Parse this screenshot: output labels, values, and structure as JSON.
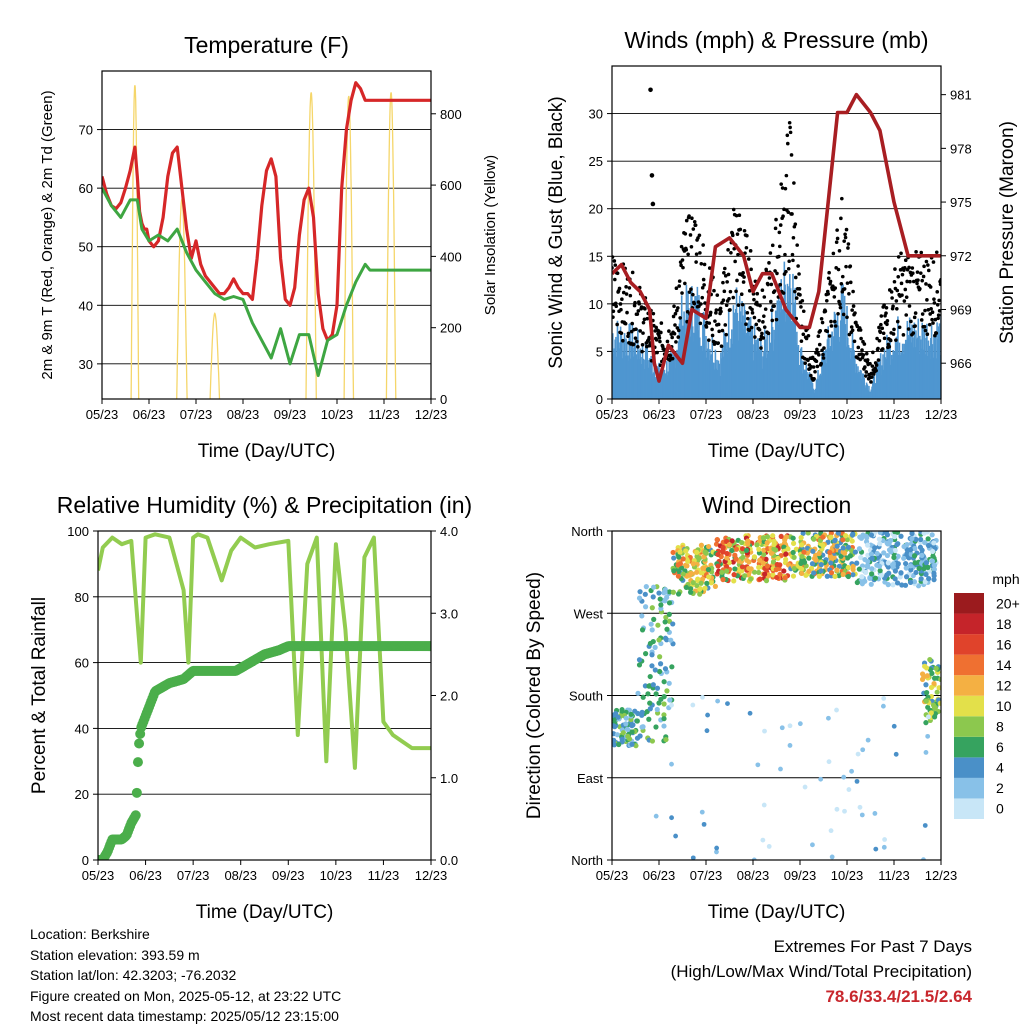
{
  "chart_data": [
    {
      "type": "line",
      "id": "temperature",
      "title": "Temperature (F)",
      "xlabel": "Time (Day/UTC)",
      "ylabel": "2m & 9m T (Red, Orange) & 2m Td (Green)",
      "ylabel_right": "Solar Insolation (Yellow)",
      "x_ticks": [
        "05/23",
        "06/23",
        "07/23",
        "08/23",
        "09/23",
        "10/23",
        "11/23",
        "12/23"
      ],
      "ylim": [
        24,
        80
      ],
      "yticks": [
        30,
        40,
        50,
        60,
        70
      ],
      "ylim_right": [
        0,
        920
      ],
      "yticks_right": [
        0,
        200,
        400,
        600,
        800
      ],
      "series": [
        {
          "color": "#d62728",
          "x": [
            0,
            0.1,
            0.2,
            0.3,
            0.4,
            0.5,
            0.6,
            0.7,
            0.75,
            0.8,
            0.85,
            0.9,
            0.95,
            1.0,
            1.1,
            1.2,
            1.3,
            1.4,
            1.5,
            1.6,
            1.7,
            1.8,
            1.9,
            2.0,
            2.1,
            2.2,
            2.3,
            2.4,
            2.5,
            2.6,
            2.7,
            2.8,
            2.9,
            3.0,
            3.1,
            3.2,
            3.3,
            3.4,
            3.5,
            3.6,
            3.7,
            3.8,
            3.9,
            4.0,
            4.1,
            4.2,
            4.3,
            4.4,
            4.5,
            4.6,
            4.7,
            4.8,
            4.9,
            5.0,
            5.1,
            5.2,
            5.3,
            5.4,
            5.5,
            5.6,
            5.7,
            5.8,
            5.9,
            6.0,
            6.1,
            6.2,
            6.3,
            6.4,
            6.5,
            6.6,
            6.7,
            6.8,
            6.9,
            7.0
          ],
          "y": [
            62,
            59,
            57,
            56.5,
            57.5,
            60,
            63,
            67,
            62,
            56,
            54,
            53,
            53,
            51,
            50,
            51,
            55,
            62,
            66,
            67,
            60,
            53,
            48,
            51,
            47,
            45,
            44,
            43,
            42,
            42,
            43,
            44.5,
            43,
            42,
            42,
            41,
            48,
            57,
            63,
            65,
            62,
            48,
            41,
            40,
            43,
            52,
            58,
            60,
            55,
            42,
            36,
            34,
            35,
            40,
            60,
            70,
            75,
            78,
            77,
            75,
            75,
            75,
            75,
            75,
            75,
            75,
            75,
            75,
            75,
            75,
            75,
            75,
            75,
            75
          ]
        },
        {
          "color": "#3ea642",
          "x": [
            0,
            0.2,
            0.4,
            0.6,
            0.75,
            0.85,
            1.0,
            1.2,
            1.4,
            1.6,
            1.8,
            2.0,
            2.2,
            2.4,
            2.6,
            2.8,
            3.0,
            3.2,
            3.4,
            3.6,
            3.8,
            4.0,
            4.2,
            4.4,
            4.6,
            4.8,
            5.0,
            5.2,
            5.4,
            5.6,
            5.7,
            5.8,
            5.9,
            6.0,
            6.1,
            6.2,
            6.3,
            6.5,
            7.0
          ],
          "y": [
            60,
            57,
            55,
            58,
            58,
            53,
            51,
            52,
            51,
            53,
            49,
            46,
            44,
            42,
            41,
            41.5,
            41,
            37,
            34,
            31,
            36,
            30,
            35,
            35,
            28,
            34,
            35,
            40,
            44,
            47,
            46,
            46,
            46,
            46,
            46,
            46,
            46,
            46,
            46
          ]
        }
      ],
      "insolation_color": "#f5d66a",
      "insolation_peaks": [
        {
          "center": 0.7,
          "width": 0.16,
          "value": 880
        },
        {
          "center": 1.7,
          "width": 0.22,
          "value": 560
        },
        {
          "center": 2.4,
          "width": 0.2,
          "value": 240
        },
        {
          "center": 4.45,
          "width": 0.22,
          "value": 860
        },
        {
          "center": 5.25,
          "width": 0.2,
          "value": 850
        },
        {
          "center": 6.15,
          "width": 0.2,
          "value": 860
        }
      ]
    },
    {
      "type": "scatter",
      "id": "winds",
      "title": "Winds (mph) & Pressure (mb)",
      "xlabel": "Time (Day/UTC)",
      "ylabel": "Sonic Wind & Gust (Blue, Black)",
      "ylabel_right": "Station Pressure (Maroon)",
      "x_ticks": [
        "05/23",
        "06/23",
        "07/23",
        "08/23",
        "09/23",
        "10/23",
        "11/23",
        "12/23"
      ],
      "ylim": [
        0,
        35
      ],
      "yticks": [
        0,
        5,
        10,
        15,
        20,
        25,
        30
      ],
      "ylim_right": [
        964.0,
        982.6
      ],
      "yticks_right": [
        966,
        969,
        972,
        975,
        978,
        981
      ],
      "gust_envelope": {
        "color": "#000000",
        "x": [
          0,
          0.5,
          1.0,
          1.3,
          1.5,
          1.8,
          2.0,
          2.3,
          2.6,
          2.9,
          3.2,
          3.5,
          3.8,
          4.0,
          4.3,
          4.6,
          4.9,
          5.2,
          5.5,
          5.8,
          6.1,
          6.4,
          6.7,
          7.0
        ],
        "y": [
          12,
          10,
          6,
          7,
          14,
          16,
          12,
          8,
          17,
          13,
          9,
          15,
          24,
          9,
          3,
          10,
          17,
          7,
          3,
          8,
          12,
          12,
          12,
          12
        ]
      },
      "wind_envelope": {
        "color": "#4f96d0",
        "x": [
          0,
          0.5,
          1.0,
          1.3,
          1.5,
          1.8,
          2.0,
          2.3,
          2.6,
          2.9,
          3.2,
          3.5,
          3.8,
          4.0,
          4.3,
          4.6,
          4.9,
          5.2,
          5.5,
          5.8,
          6.1,
          6.4,
          6.7,
          7.0
        ],
        "y": [
          7,
          6,
          3,
          4,
          9,
          10,
          7,
          4,
          10,
          7,
          5,
          9,
          14,
          5,
          1,
          6,
          10,
          4,
          1,
          5,
          7,
          7,
          7,
          7
        ]
      },
      "pressure": {
        "color": "#a81e22",
        "x": [
          0,
          0.2,
          0.4,
          0.6,
          0.8,
          0.9,
          1.0,
          1.2,
          1.5,
          1.7,
          2.0,
          2.2,
          2.5,
          2.8,
          3.0,
          3.2,
          3.4,
          3.7,
          4.0,
          4.2,
          4.4,
          4.6,
          4.8,
          5.0,
          5.2,
          5.5,
          5.7,
          6.0,
          6.3,
          6.5,
          6.7,
          7.0
        ],
        "y": [
          971,
          971.5,
          970.5,
          970,
          969,
          966,
          965,
          967,
          966,
          969,
          968.5,
          972.5,
          973,
          972,
          970,
          971,
          971,
          969,
          968,
          968,
          970,
          975,
          980,
          980,
          981,
          980,
          979,
          975,
          972,
          972,
          972,
          972
        ]
      },
      "gust_spikes": [
        {
          "x": 0.82,
          "y": 32.5
        },
        {
          "x": 0.85,
          "y": 23.5
        },
        {
          "x": 0.87,
          "y": 20.5
        }
      ]
    },
    {
      "type": "line",
      "id": "humidity",
      "title": "Relative Humidity (%) & Precipitation (in)",
      "xlabel": "Time (Day/UTC)",
      "ylabel": "Percent & Total Rainfall",
      "x_ticks": [
        "05/23",
        "06/23",
        "07/23",
        "08/23",
        "09/23",
        "10/23",
        "11/23",
        "12/23"
      ],
      "ylim": [
        0,
        100
      ],
      "yticks": [
        0,
        20,
        40,
        60,
        80,
        100
      ],
      "ylim_right": [
        0,
        4
      ],
      "yticks_right": [
        "0.0",
        "1.0",
        "2.0",
        "3.0",
        "4.0"
      ],
      "rh": {
        "color": "#92cc50",
        "x": [
          0,
          0.1,
          0.3,
          0.5,
          0.7,
          0.8,
          0.9,
          1.0,
          1.2,
          1.5,
          1.8,
          1.9,
          2.0,
          2.1,
          2.3,
          2.6,
          2.8,
          3.0,
          3.3,
          3.6,
          4.0,
          4.2,
          4.4,
          4.6,
          4.8,
          5.0,
          5.2,
          5.4,
          5.6,
          5.8,
          6.0,
          6.2,
          6.4,
          6.6,
          6.8,
          7.0
        ],
        "y": [
          88,
          95,
          98,
          96,
          97,
          78,
          60,
          98,
          99,
          98,
          82,
          60,
          98,
          99,
          98,
          85,
          94,
          98,
          95,
          96,
          97,
          38,
          90,
          98,
          30,
          96,
          70,
          28,
          92,
          98,
          42,
          38,
          36,
          34,
          34,
          34
        ]
      },
      "precip": {
        "color": "#4bae4b",
        "x": [
          0,
          0.1,
          0.2,
          0.3,
          0.5,
          0.6,
          0.7,
          0.75,
          0.8,
          0.85,
          0.9,
          1.0,
          1.2,
          1.5,
          1.8,
          2.0,
          2.3,
          2.6,
          2.9,
          3.2,
          3.5,
          3.8,
          4.0,
          4.3,
          4.6,
          4.9,
          5.2,
          5.5,
          5.8,
          6.1,
          6.4,
          6.7,
          7.0
        ],
        "y": [
          0,
          0,
          0.1,
          0.25,
          0.25,
          0.3,
          0.45,
          0.5,
          0.55,
          1.35,
          1.6,
          1.75,
          2.05,
          2.15,
          2.2,
          2.3,
          2.3,
          2.3,
          2.3,
          2.4,
          2.5,
          2.55,
          2.6,
          2.6,
          2.6,
          2.6,
          2.6,
          2.6,
          2.6,
          2.6,
          2.6,
          2.6,
          2.6
        ]
      }
    },
    {
      "type": "scatter",
      "id": "wind_direction",
      "title": "Wind Direction",
      "xlabel": "Time (Day/UTC)",
      "ylabel": "Direction (Colored By Speed)",
      "x_ticks": [
        "05/23",
        "06/23",
        "07/23",
        "08/23",
        "09/23",
        "10/23",
        "11/23",
        "12/23"
      ],
      "y_ticks": [
        "North",
        "East",
        "South",
        "West",
        "North"
      ],
      "ylim": [
        0,
        360
      ],
      "colorbar_title": "mph",
      "colorbar_labels": [
        "0",
        "2",
        "4",
        "6",
        "8",
        "10",
        "12",
        "14",
        "16",
        "18",
        "20+"
      ],
      "colorbar_colors": [
        "#c8e6f7",
        "#88c1e8",
        "#4a90c8",
        "#36a35f",
        "#8cc84e",
        "#e3e04a",
        "#f4b043",
        "#ef7031",
        "#e0432b",
        "#c5242a",
        "#9b1b1e"
      ],
      "bands": [
        {
          "x0": 0,
          "x1": 0.55,
          "y0": 125,
          "y1": 165,
          "speed_lo": 2,
          "speed_hi": 8
        },
        {
          "x0": 0.55,
          "x1": 1.3,
          "y0": 130,
          "y1": 300,
          "speed_lo": 1,
          "speed_hi": 8
        },
        {
          "x0": 1.3,
          "x1": 2.2,
          "y0": 290,
          "y1": 345,
          "speed_lo": 4,
          "speed_hi": 14
        },
        {
          "x0": 2.2,
          "x1": 3.8,
          "y0": 305,
          "y1": 355,
          "speed_lo": 6,
          "speed_hi": 18
        },
        {
          "x0": 3.8,
          "x1": 5.2,
          "y0": 310,
          "y1": 358,
          "speed_lo": 3,
          "speed_hi": 14
        },
        {
          "x0": 5.2,
          "x1": 6.9,
          "y0": 300,
          "y1": 360,
          "speed_lo": 0,
          "speed_hi": 6
        },
        {
          "x0": 6.6,
          "x1": 7.0,
          "y0": 150,
          "y1": 220,
          "speed_lo": 4,
          "speed_hi": 12
        }
      ]
    }
  ],
  "info": {
    "location": "Location: Berkshire",
    "elevation": "Station elevation: 393.59 m",
    "latlon": "Station lat/lon: 42.3203; -76.2032",
    "created": "Figure created on Mon, 2025-05-12, at 23:22 UTC",
    "recent": "Most recent data timestamp: 2025/05/12 23:15:00"
  },
  "extremes": {
    "title": "Extremes For Past 7 Days",
    "subtitle": "(High/Low/Max Wind/Total Precipitation)",
    "values": "78.6/33.4/21.5/2.64"
  }
}
